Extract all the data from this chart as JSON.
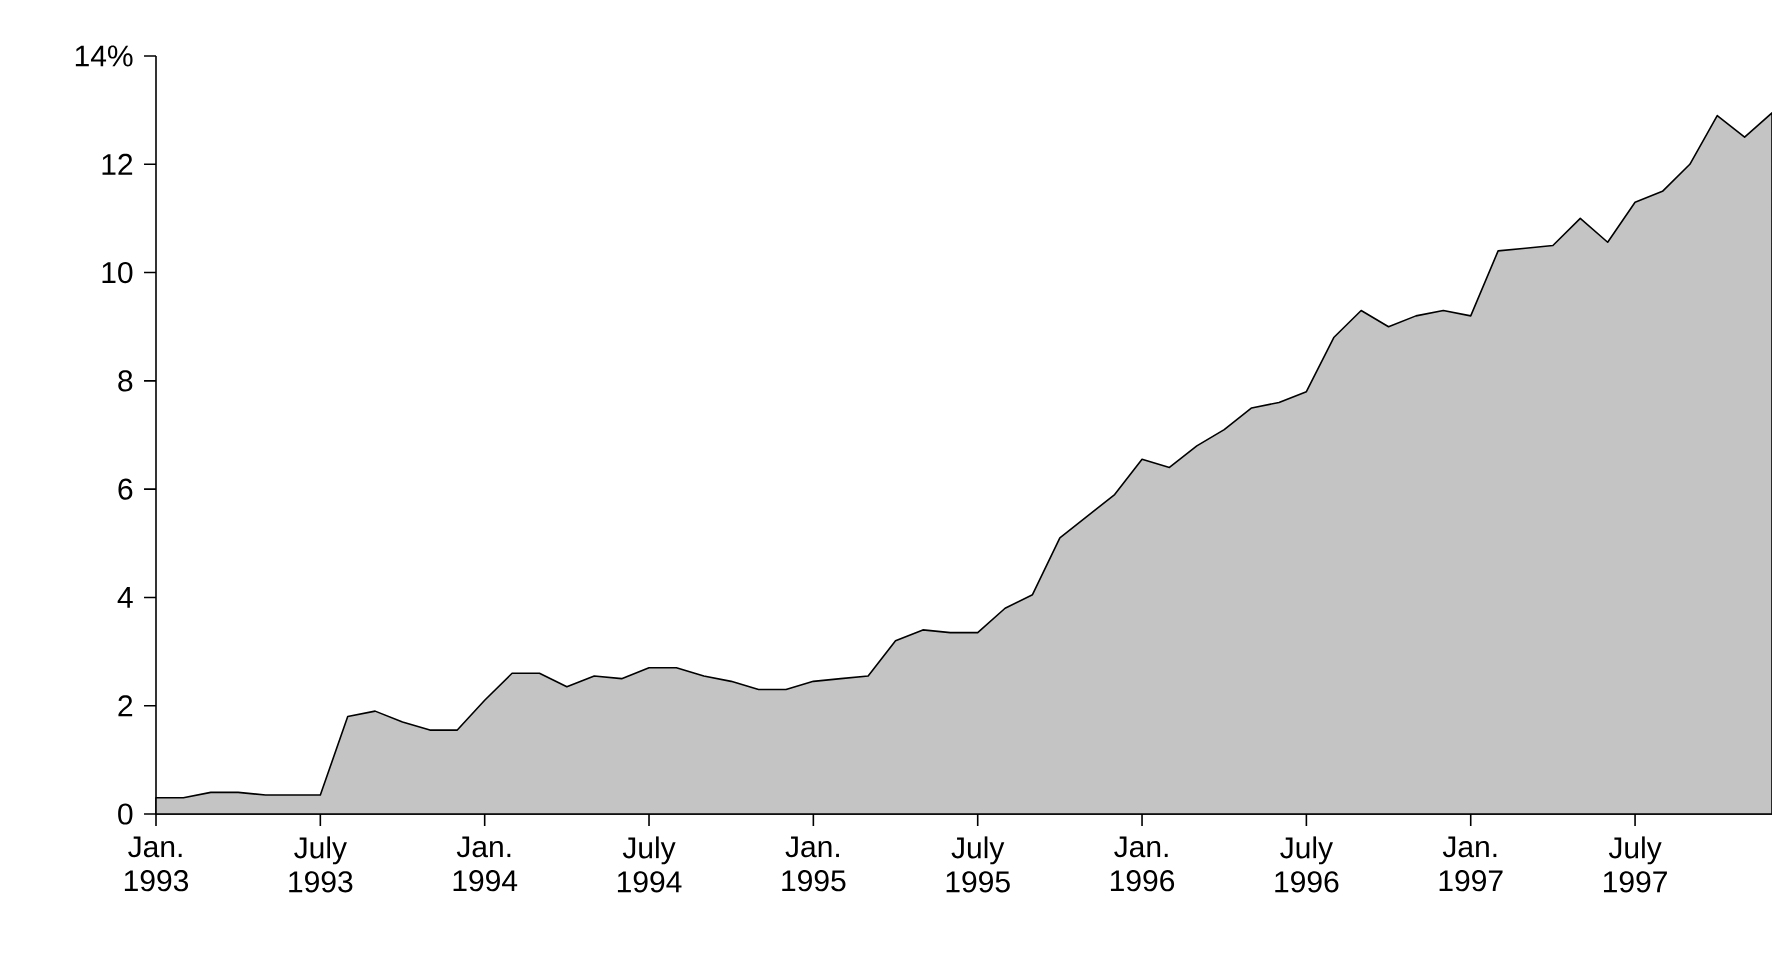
{
  "chart_data": {
    "type": "area",
    "color": "#c4c4c4",
    "x": [
      "1993-01",
      "1993-02",
      "1993-03",
      "1993-04",
      "1993-05",
      "1993-06",
      "1993-07",
      "1993-08",
      "1993-09",
      "1993-10",
      "1993-11",
      "1993-12",
      "1994-01",
      "1994-02",
      "1994-03",
      "1994-04",
      "1994-05",
      "1994-06",
      "1994-07",
      "1994-08",
      "1994-09",
      "1994-10",
      "1994-11",
      "1994-12",
      "1995-01",
      "1995-02",
      "1995-03",
      "1995-04",
      "1995-05",
      "1995-06",
      "1995-07",
      "1995-08",
      "1995-09",
      "1995-10",
      "1995-11",
      "1995-12",
      "1996-01",
      "1996-02",
      "1996-03",
      "1996-04",
      "1996-05",
      "1996-06",
      "1996-07",
      "1996-08",
      "1996-09",
      "1996-10",
      "1996-11",
      "1996-12",
      "1997-01",
      "1997-02",
      "1997-03",
      "1997-04",
      "1997-05",
      "1997-06",
      "1997-07",
      "1997-08",
      "1997-09",
      "1997-10",
      "1997-11",
      "1997-12"
    ],
    "values": [
      0.3,
      0.3,
      0.4,
      0.4,
      0.35,
      0.35,
      0.35,
      1.8,
      1.9,
      1.7,
      1.55,
      1.55,
      2.1,
      2.6,
      2.6,
      2.35,
      2.55,
      2.5,
      2.7,
      2.7,
      2.55,
      2.45,
      2.3,
      2.3,
      2.45,
      2.5,
      2.55,
      3.2,
      3.4,
      3.35,
      3.35,
      3.8,
      4.05,
      5.1,
      5.5,
      5.9,
      6.55,
      6.4,
      6.8,
      7.1,
      7.5,
      7.6,
      7.8,
      8.8,
      9.3,
      9.0,
      9.2,
      9.3,
      9.2,
      10.4,
      10.45,
      10.5,
      11.0,
      10.56,
      11.3,
      11.5,
      12.0,
      12.9,
      12.5,
      12.95
    ],
    "xlim": [
      "1993-01",
      "1997-12"
    ],
    "xticks": [
      {
        "value": "1993-01",
        "label": "Jan. 1993"
      },
      {
        "value": "1993-07",
        "label": "July 1993"
      },
      {
        "value": "1994-01",
        "label": "Jan. 1994"
      },
      {
        "value": "1994-07",
        "label": "July 1994"
      },
      {
        "value": "1995-01",
        "label": "Jan. 1995"
      },
      {
        "value": "1995-07",
        "label": "July 1995"
      },
      {
        "value": "1996-01",
        "label": "Jan. 1996"
      },
      {
        "value": "1996-07",
        "label": "July 1996"
      },
      {
        "value": "1997-01",
        "label": "Jan. 1997"
      },
      {
        "value": "1997-07",
        "label": "July 1997"
      }
    ],
    "ylim": [
      0,
      14
    ],
    "yticks": [
      0,
      2,
      4,
      6,
      8,
      10,
      12,
      {
        "value": 14,
        "label": "14%"
      }
    ]
  }
}
